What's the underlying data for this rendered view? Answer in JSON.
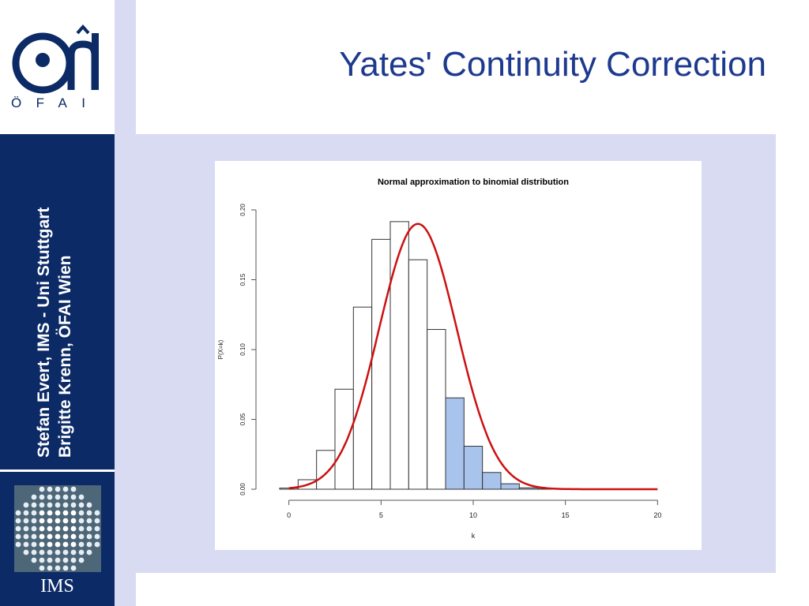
{
  "slide": {
    "title": "Yates' Continuity Correction",
    "authors": [
      "Stefan Evert, IMS - Uni Stuttgart",
      "Brigitte Krenn, ÖFAI Wien"
    ],
    "logo_text": "ÖFAI",
    "footer_label": "IMS",
    "colors": {
      "navy": "#0b2a66",
      "lavender": "#d9dbf3",
      "title_blue": "#1e3a8f"
    }
  },
  "chart_data": {
    "type": "bar",
    "title": "Normal approximation to binomial distribution",
    "xlabel": "k",
    "ylabel": "P(X=k)",
    "xlim": [
      -0.5,
      20.5
    ],
    "ylim": [
      0,
      0.2
    ],
    "x_ticks": [
      0,
      5,
      10,
      15,
      20
    ],
    "y_ticks": [
      "0.00",
      "0.05",
      "0.10",
      "0.15",
      "0.20"
    ],
    "categories": [
      0,
      1,
      2,
      3,
      4,
      5,
      6,
      7,
      8,
      9,
      10,
      11,
      12,
      13,
      14,
      15,
      16,
      17,
      18,
      19,
      20
    ],
    "values": [
      0.0008,
      0.0068,
      0.0278,
      0.0716,
      0.1304,
      0.1789,
      0.1916,
      0.1643,
      0.1144,
      0.0654,
      0.0308,
      0.012,
      0.0039,
      0.001,
      0.0002,
      0.0,
      0.0,
      0.0,
      0.0,
      0.0,
      0.0
    ],
    "highlight_from": 9,
    "bar_fill": "#ffffff",
    "highlight_fill": "#a8c4ec",
    "curve": {
      "type": "normal",
      "mean": 7,
      "sd": 2.1,
      "color": "#cc1111"
    },
    "grid": false,
    "legend": "none"
  }
}
